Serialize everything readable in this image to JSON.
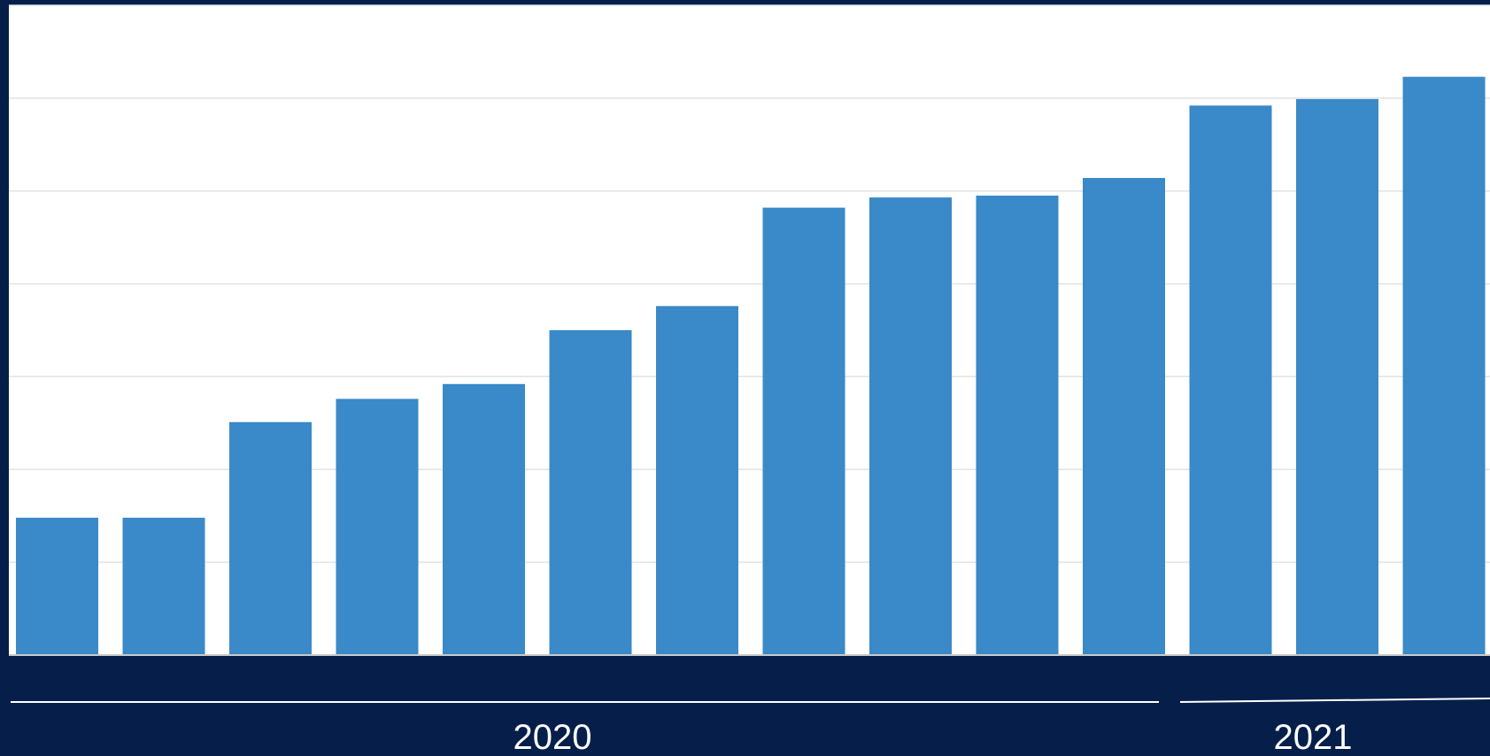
{
  "colors": {
    "background": "#061f4a",
    "plot_background": "#ffffff",
    "bar": "#3a89c8",
    "gridline": "#e3e3e3",
    "text": "#ffffff"
  },
  "chart_data": {
    "type": "bar",
    "grid": true,
    "ylim": [
      0,
      7
    ],
    "y_gridlines": [
      1,
      2,
      3,
      4,
      5,
      6,
      7
    ],
    "categories": [
      "",
      "",
      "",
      "",
      "",
      "",
      "",
      "",
      "",
      "",
      "",
      "",
      "",
      ""
    ],
    "values": [
      1.48,
      1.48,
      2.51,
      2.76,
      2.92,
      3.5,
      3.76,
      4.82,
      4.93,
      4.95,
      5.14,
      5.92,
      5.99,
      6.23
    ],
    "groups": [
      {
        "label": "2020",
        "start": 0,
        "end": 10
      },
      {
        "label": "2021",
        "start": 11,
        "end": 13
      }
    ]
  }
}
